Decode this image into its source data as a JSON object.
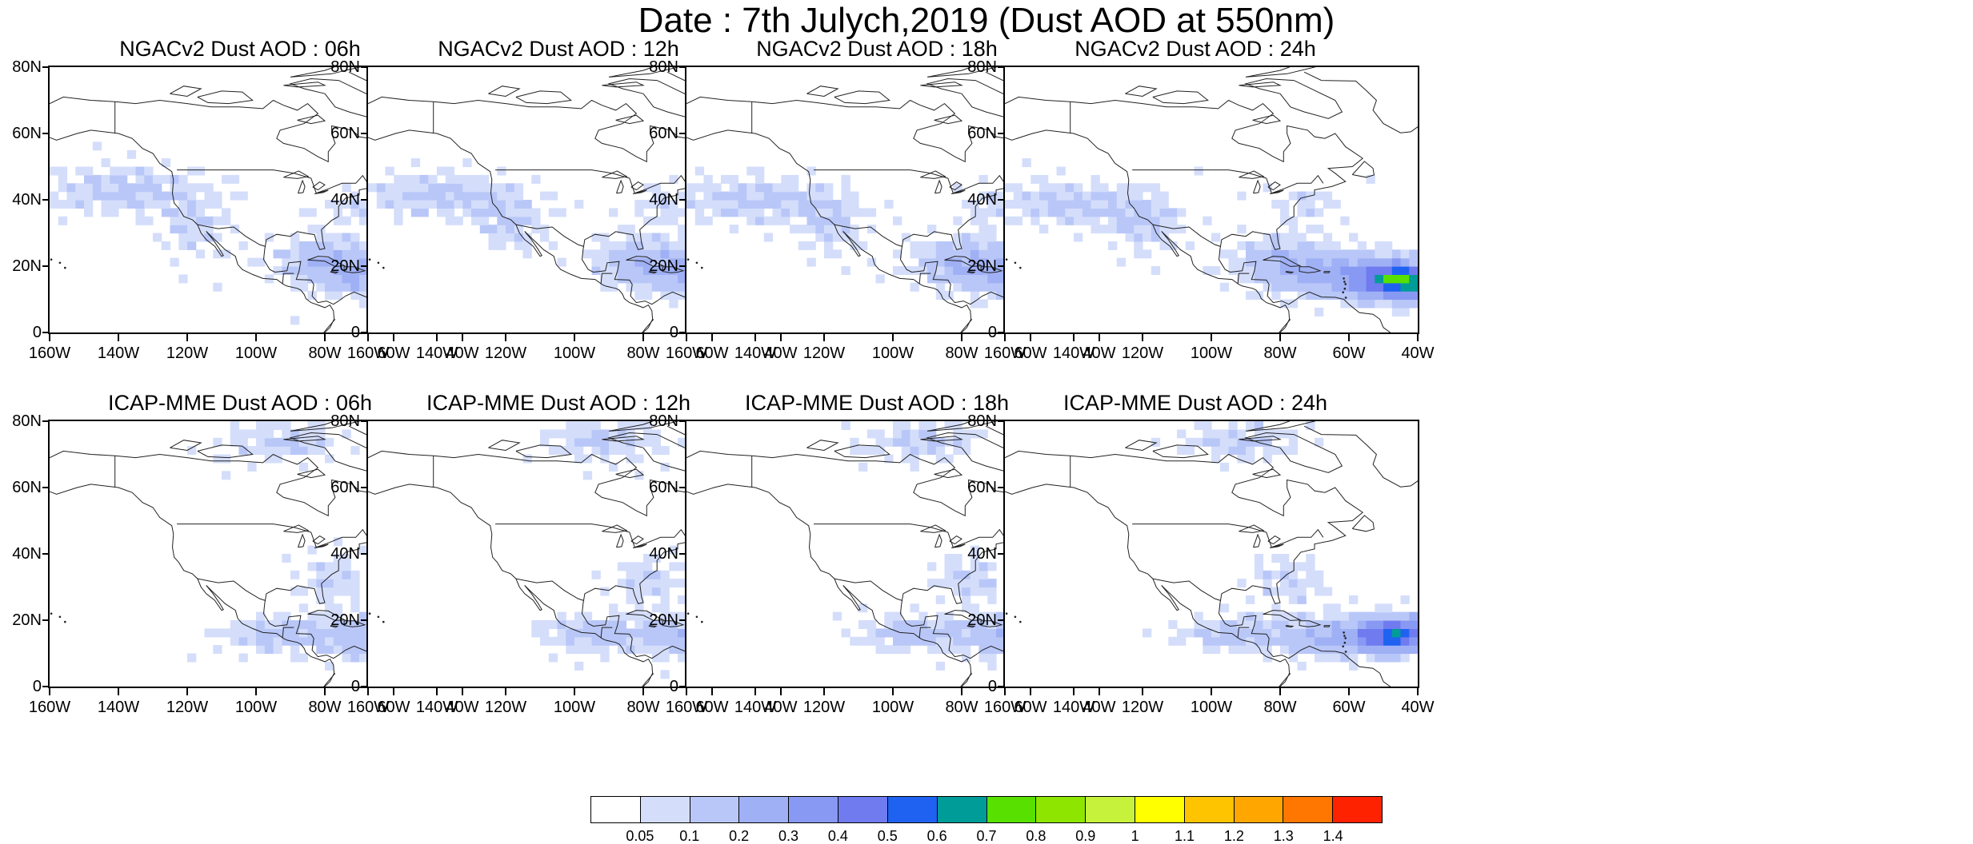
{
  "figure_title": "Date : 7th Julych,2019 (Dust AOD at 550nm)",
  "map_common": {
    "lat_labels": [
      "80N",
      "60N",
      "40N",
      "20N",
      "0"
    ],
    "lat_values": [
      80,
      60,
      40,
      20,
      0
    ],
    "lon_labels": [
      "160W",
      "140W",
      "120W",
      "100W",
      "80W",
      "60W",
      "40W"
    ],
    "lon_values": [
      -160,
      -140,
      -120,
      -100,
      -80,
      -60,
      -40
    ],
    "lon_range": [
      -160,
      -40
    ],
    "lat_range": [
      0,
      80
    ]
  },
  "panels": [
    {
      "title": "NGACv2 Dust AOD : 06h",
      "model": "NGACv2",
      "hour": "06h"
    },
    {
      "title": "NGACv2 Dust AOD : 12h",
      "model": "NGACv2",
      "hour": "12h"
    },
    {
      "title": "NGACv2 Dust AOD : 18h",
      "model": "NGACv2",
      "hour": "18h"
    },
    {
      "title": "NGACv2 Dust AOD : 24h",
      "model": "NGACv2",
      "hour": "24h"
    },
    {
      "title": "ICAP-MME Dust AOD : 06h",
      "model": "ICAP-MME",
      "hour": "06h"
    },
    {
      "title": "ICAP-MME Dust AOD : 12h",
      "model": "ICAP-MME",
      "hour": "12h"
    },
    {
      "title": "ICAP-MME Dust AOD : 18h",
      "model": "ICAP-MME",
      "hour": "18h"
    },
    {
      "title": "ICAP-MME Dust AOD : 24h",
      "model": "ICAP-MME",
      "hour": "24h"
    }
  ],
  "colorbar": {
    "labels": [
      "0.05",
      "0.1",
      "0.2",
      "0.3",
      "0.4",
      "0.5",
      "0.6",
      "0.7",
      "0.8",
      "0.9",
      "1",
      "1.1",
      "1.2",
      "1.3",
      "1.4"
    ],
    "colors": [
      "#ffffff",
      "#d4defb",
      "#b9c7f8",
      "#9fb0f5",
      "#8899f3",
      "#6f7bef",
      "#1f62f2",
      "#009c98",
      "#58e000",
      "#8ee600",
      "#c6f23c",
      "#ffff00",
      "#ffc400",
      "#ffa600",
      "#ff7700",
      "#ff2200"
    ]
  }
}
